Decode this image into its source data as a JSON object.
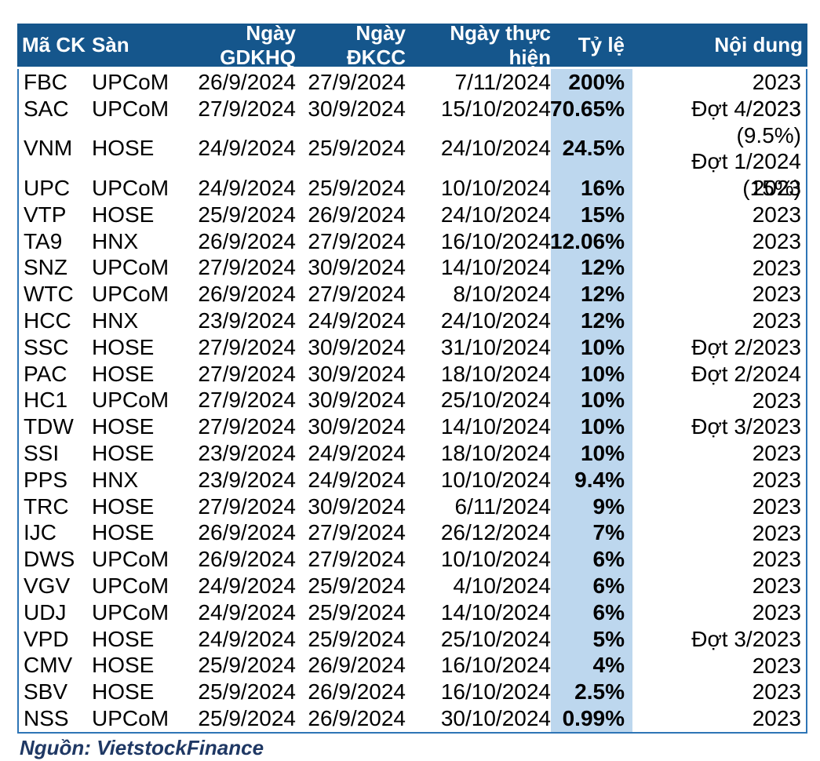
{
  "chart_data": {
    "type": "table",
    "columns": [
      {
        "label": "Mã CK"
      },
      {
        "label": "Sàn"
      },
      {
        "label": "Ngày GDKHQ"
      },
      {
        "label": "Ngày ĐKCC"
      },
      {
        "label": "Ngày thực hiện"
      },
      {
        "label": "Tỷ lệ"
      },
      {
        "label": "Nội dung"
      }
    ],
    "rows": [
      [
        "FBC",
        "UPCoM",
        "26/9/2024",
        "27/9/2024",
        "7/11/2024",
        "200%",
        "2023"
      ],
      [
        "SAC",
        "UPCoM",
        "27/9/2024",
        "30/9/2024",
        "15/10/2024",
        "70.65%",
        "2023"
      ],
      [
        "VNM",
        "HOSE",
        "24/9/2024",
        "25/9/2024",
        "24/10/2024",
        "24.5%",
        "Đợt 4/2023 (9.5%)\nĐợt 1/2024 (15%)"
      ],
      [
        "UPC",
        "UPCoM",
        "24/9/2024",
        "25/9/2024",
        "10/10/2024",
        "16%",
        "2023"
      ],
      [
        "VTP",
        "HOSE",
        "25/9/2024",
        "26/9/2024",
        "24/10/2024",
        "15%",
        "2023"
      ],
      [
        "TA9",
        "HNX",
        "26/9/2024",
        "27/9/2024",
        "16/10/2024",
        "12.06%",
        "2023"
      ],
      [
        "SNZ",
        "UPCoM",
        "27/9/2024",
        "30/9/2024",
        "14/10/2024",
        "12%",
        "2023"
      ],
      [
        "WTC",
        "UPCoM",
        "26/9/2024",
        "27/9/2024",
        "8/10/2024",
        "12%",
        "2023"
      ],
      [
        "HCC",
        "HNX",
        "23/9/2024",
        "24/9/2024",
        "24/10/2024",
        "12%",
        "2023"
      ],
      [
        "SSC",
        "HOSE",
        "27/9/2024",
        "30/9/2024",
        "31/10/2024",
        "10%",
        "Đợt 2/2023"
      ],
      [
        "PAC",
        "HOSE",
        "27/9/2024",
        "30/9/2024",
        "18/10/2024",
        "10%",
        "Đợt 2/2024"
      ],
      [
        "HC1",
        "UPCoM",
        "27/9/2024",
        "30/9/2024",
        "25/10/2024",
        "10%",
        "2023"
      ],
      [
        "TDW",
        "HOSE",
        "27/9/2024",
        "30/9/2024",
        "14/10/2024",
        "10%",
        "Đợt 3/2023"
      ],
      [
        "SSI",
        "HOSE",
        "23/9/2024",
        "24/9/2024",
        "18/10/2024",
        "10%",
        "2023"
      ],
      [
        "PPS",
        "HNX",
        "23/9/2024",
        "24/9/2024",
        "10/10/2024",
        "9.4%",
        "2023"
      ],
      [
        "TRC",
        "HOSE",
        "27/9/2024",
        "30/9/2024",
        "6/11/2024",
        "9%",
        "2023"
      ],
      [
        "IJC",
        "HOSE",
        "26/9/2024",
        "27/9/2024",
        "26/12/2024",
        "7%",
        "2023"
      ],
      [
        "DWS",
        "UPCoM",
        "26/9/2024",
        "27/9/2024",
        "10/10/2024",
        "6%",
        "2023"
      ],
      [
        "VGV",
        "UPCoM",
        "24/9/2024",
        "25/9/2024",
        "4/10/2024",
        "6%",
        "2023"
      ],
      [
        "UDJ",
        "UPCoM",
        "24/9/2024",
        "25/9/2024",
        "14/10/2024",
        "6%",
        "2023"
      ],
      [
        "VPD",
        "HOSE",
        "24/9/2024",
        "25/9/2024",
        "25/10/2024",
        "5%",
        "Đợt 3/2023"
      ],
      [
        "CMV",
        "HOSE",
        "25/9/2024",
        "26/9/2024",
        "16/10/2024",
        "4%",
        "2023"
      ],
      [
        "SBV",
        "HOSE",
        "25/9/2024",
        "26/9/2024",
        "16/10/2024",
        "2.5%",
        "2023"
      ],
      [
        "NSS",
        "UPCoM",
        "25/9/2024",
        "26/9/2024",
        "30/10/2024",
        "0.99%",
        "2023"
      ]
    ],
    "title": "",
    "legend": "none",
    "grid": "off"
  },
  "footer": {
    "source": "Nguồn: VietstockFinance"
  },
  "colors": {
    "header_bg": "#15568C",
    "highlight": "#BDD7EE",
    "border": "#2E75B6",
    "footer_text": "#1F3864"
  }
}
